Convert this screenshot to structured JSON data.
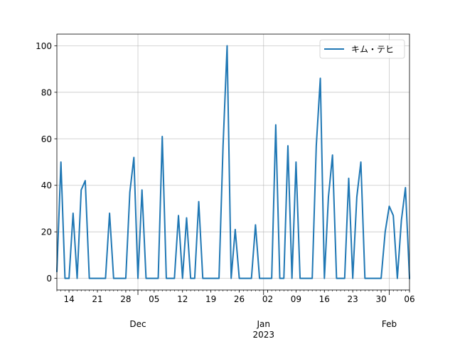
{
  "chart_data": {
    "type": "line",
    "title": "",
    "xlabel": "",
    "ylabel": "",
    "x_start": "2022-11-11",
    "x_end": "2023-02-06",
    "ylim": [
      -5,
      105
    ],
    "yticks": [
      0,
      20,
      40,
      60,
      80,
      100
    ],
    "grid": true,
    "legend_position": "upper right",
    "x_minor_ticks": [
      {
        "date": "2022-11-14",
        "label": "14"
      },
      {
        "date": "2022-11-21",
        "label": "21"
      },
      {
        "date": "2022-11-28",
        "label": "28"
      },
      {
        "date": "2022-12-05",
        "label": "05"
      },
      {
        "date": "2022-12-12",
        "label": "12"
      },
      {
        "date": "2022-12-19",
        "label": "19"
      },
      {
        "date": "2022-12-26",
        "label": "26"
      },
      {
        "date": "2023-01-02",
        "label": "02"
      },
      {
        "date": "2023-01-09",
        "label": "09"
      },
      {
        "date": "2023-01-16",
        "label": "16"
      },
      {
        "date": "2023-01-23",
        "label": "23"
      },
      {
        "date": "2023-01-30",
        "label": "30"
      },
      {
        "date": "2023-02-06",
        "label": "06"
      }
    ],
    "x_major_ticks": [
      {
        "date": "2022-12-01",
        "label": "Dec",
        "sublabel": ""
      },
      {
        "date": "2023-01-01",
        "label": "Jan",
        "sublabel": "2023"
      },
      {
        "date": "2023-02-01",
        "label": "Feb",
        "sublabel": ""
      }
    ],
    "series": [
      {
        "name": "キム・テヒ",
        "color": "#1f77b4",
        "points": [
          [
            "2022-11-11",
            3
          ],
          [
            "2022-11-12",
            50
          ],
          [
            "2022-11-13",
            0
          ],
          [
            "2022-11-14",
            0
          ],
          [
            "2022-11-15",
            28
          ],
          [
            "2022-11-16",
            0
          ],
          [
            "2022-11-17",
            38
          ],
          [
            "2022-11-18",
            42
          ],
          [
            "2022-11-19",
            0
          ],
          [
            "2022-11-20",
            0
          ],
          [
            "2022-11-21",
            0
          ],
          [
            "2022-11-22",
            0
          ],
          [
            "2022-11-23",
            0
          ],
          [
            "2022-11-24",
            28
          ],
          [
            "2022-11-25",
            0
          ],
          [
            "2022-11-26",
            0
          ],
          [
            "2022-11-27",
            0
          ],
          [
            "2022-11-28",
            0
          ],
          [
            "2022-11-29",
            37
          ],
          [
            "2022-11-30",
            52
          ],
          [
            "2022-12-01",
            0
          ],
          [
            "2022-12-02",
            38
          ],
          [
            "2022-12-03",
            0
          ],
          [
            "2022-12-04",
            0
          ],
          [
            "2022-12-05",
            0
          ],
          [
            "2022-12-06",
            0
          ],
          [
            "2022-12-07",
            61
          ],
          [
            "2022-12-08",
            0
          ],
          [
            "2022-12-09",
            0
          ],
          [
            "2022-12-10",
            0
          ],
          [
            "2022-12-11",
            27
          ],
          [
            "2022-12-12",
            0
          ],
          [
            "2022-12-13",
            26
          ],
          [
            "2022-12-14",
            0
          ],
          [
            "2022-12-15",
            0
          ],
          [
            "2022-12-16",
            33
          ],
          [
            "2022-12-17",
            0
          ],
          [
            "2022-12-18",
            0
          ],
          [
            "2022-12-19",
            0
          ],
          [
            "2022-12-20",
            0
          ],
          [
            "2022-12-21",
            0
          ],
          [
            "2022-12-22",
            57
          ],
          [
            "2022-12-23",
            100
          ],
          [
            "2022-12-24",
            0
          ],
          [
            "2022-12-25",
            21
          ],
          [
            "2022-12-26",
            0
          ],
          [
            "2022-12-27",
            0
          ],
          [
            "2022-12-28",
            0
          ],
          [
            "2022-12-29",
            0
          ],
          [
            "2022-12-30",
            23
          ],
          [
            "2022-12-31",
            0
          ],
          [
            "2023-01-01",
            0
          ],
          [
            "2023-01-02",
            0
          ],
          [
            "2023-01-03",
            0
          ],
          [
            "2023-01-04",
            66
          ],
          [
            "2023-01-05",
            0
          ],
          [
            "2023-01-06",
            0
          ],
          [
            "2023-01-07",
            57
          ],
          [
            "2023-01-08",
            0
          ],
          [
            "2023-01-09",
            50
          ],
          [
            "2023-01-10",
            0
          ],
          [
            "2023-01-11",
            0
          ],
          [
            "2023-01-12",
            0
          ],
          [
            "2023-01-13",
            0
          ],
          [
            "2023-01-14",
            57
          ],
          [
            "2023-01-15",
            86
          ],
          [
            "2023-01-16",
            0
          ],
          [
            "2023-01-17",
            35
          ],
          [
            "2023-01-18",
            53
          ],
          [
            "2023-01-19",
            0
          ],
          [
            "2023-01-20",
            0
          ],
          [
            "2023-01-21",
            0
          ],
          [
            "2023-01-22",
            43
          ],
          [
            "2023-01-23",
            0
          ],
          [
            "2023-01-24",
            35
          ],
          [
            "2023-01-25",
            50
          ],
          [
            "2023-01-26",
            0
          ],
          [
            "2023-01-27",
            0
          ],
          [
            "2023-01-28",
            0
          ],
          [
            "2023-01-29",
            0
          ],
          [
            "2023-01-30",
            0
          ],
          [
            "2023-01-31",
            20
          ],
          [
            "2023-02-01",
            31
          ],
          [
            "2023-02-02",
            27
          ],
          [
            "2023-02-03",
            0
          ],
          [
            "2023-02-04",
            25
          ],
          [
            "2023-02-05",
            39
          ],
          [
            "2023-02-06",
            0
          ]
        ]
      }
    ]
  }
}
